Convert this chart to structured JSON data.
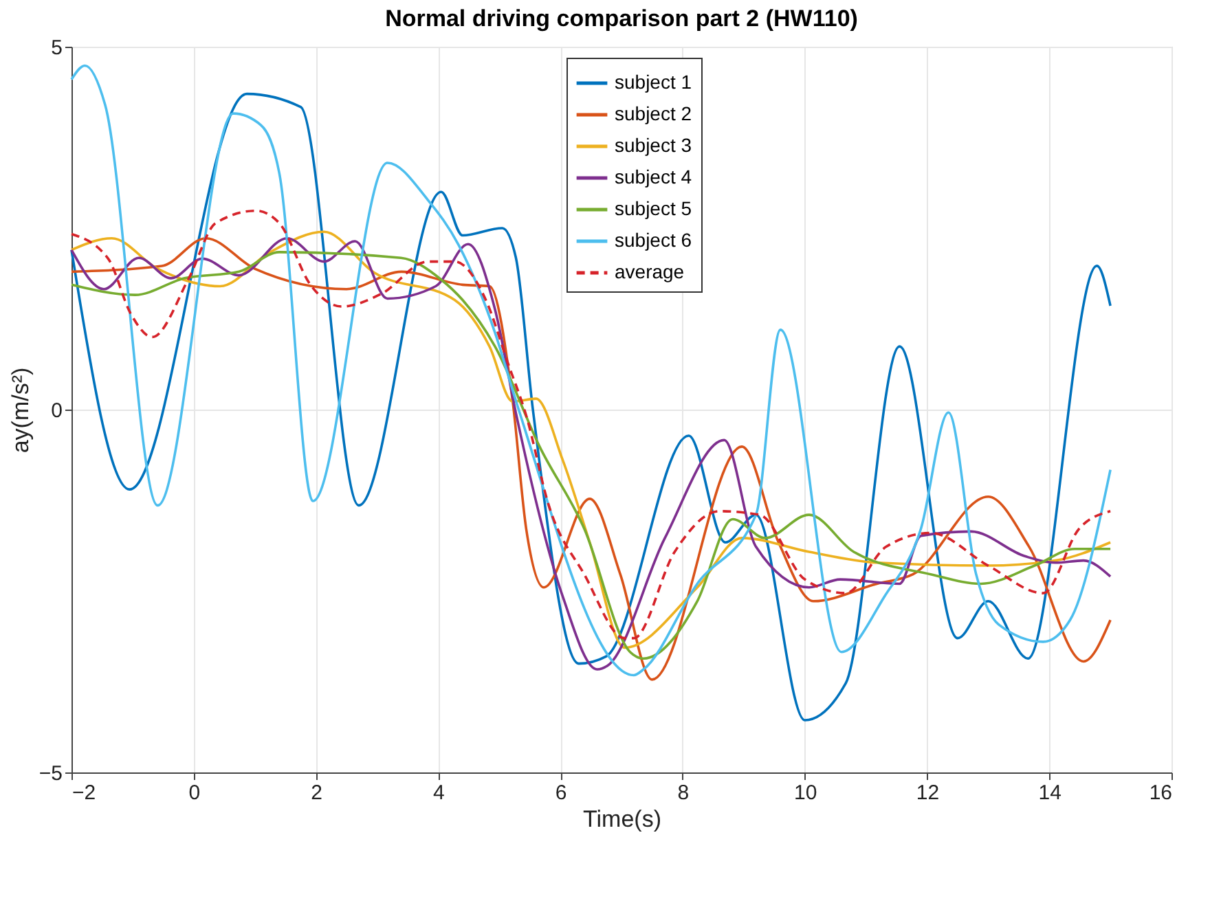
{
  "chart_data": {
    "type": "line",
    "title": "Normal driving comparison part 2 (HW110)",
    "xlabel": "Time(s)",
    "ylabel": "ay(m/s²)",
    "xlim": [
      -2,
      16
    ],
    "ylim": [
      -5,
      5
    ],
    "xticks": [
      -2,
      0,
      2,
      4,
      6,
      8,
      10,
      12,
      14,
      16
    ],
    "yticks": [
      -5,
      0,
      5
    ],
    "grid": true,
    "legend": "top",
    "marker": "none",
    "series": [
      {
        "name": "subject 1",
        "color": "#0072bd",
        "line_style": "solid",
        "x": [
          -2,
          -1.05,
          0.87,
          1.75,
          2.7,
          4.05,
          4.4,
          5.05,
          5.27,
          5.55,
          6.3,
          6.75,
          8.1,
          8.7,
          9.2,
          10.0,
          10.67,
          11.55,
          12.5,
          13.0,
          13.65,
          14.78,
          15.0
        ],
        "values": [
          2.2,
          -1.1,
          4.35,
          4.17,
          -1.32,
          3.0,
          2.4,
          2.5,
          2.1,
          0,
          -3.5,
          -3.4,
          -0.36,
          -1.83,
          -1.45,
          -4.28,
          -3.77,
          0.87,
          -3.15,
          -2.64,
          -3.43,
          1.98,
          1.43
        ]
      },
      {
        "name": "subject 2",
        "color": "#d95319",
        "line_style": "solid",
        "x": [
          -2,
          -0.52,
          0.2,
          1.0,
          2.5,
          3.4,
          4.4,
          4.84,
          5.22,
          5.44,
          5.73,
          6.48,
          6.98,
          7.5,
          8.97,
          9.57,
          10.14,
          11.18,
          11.77,
          13.0,
          13.67,
          14.56,
          15.0
        ],
        "values": [
          1.9,
          1.98,
          2.36,
          1.94,
          1.66,
          1.9,
          1.72,
          1.7,
          0.11,
          -1.64,
          -2.45,
          -1.23,
          -2.27,
          -3.72,
          -0.51,
          -1.83,
          -2.64,
          -2.4,
          -2.27,
          -1.2,
          -1.89,
          -3.47,
          -2.9
        ]
      },
      {
        "name": "subject 3",
        "color": "#edb120",
        "line_style": "solid",
        "x": [
          -2,
          -1.34,
          -0.59,
          0.43,
          1.25,
          2.13,
          2.95,
          4.27,
          4.84,
          5.22,
          5.6,
          6.04,
          6.48,
          7.05,
          8.24,
          8.97,
          10.07,
          11.18,
          13.0,
          14.1,
          15.0
        ],
        "values": [
          2.2,
          2.36,
          1.94,
          1.7,
          2.17,
          2.45,
          1.89,
          1.51,
          0.87,
          0.11,
          0.15,
          -0.7,
          -1.83,
          -3.28,
          -2.45,
          -1.77,
          -1.96,
          -2.11,
          -2.15,
          -2.08,
          -1.83
        ]
      },
      {
        "name": "subject 4",
        "color": "#7e2f8e",
        "line_style": "solid",
        "x": [
          -2,
          -1.47,
          -0.9,
          -0.37,
          0.14,
          0.74,
          1.53,
          2.13,
          2.64,
          3.17,
          3.96,
          4.49,
          4.93,
          5.28,
          6.04,
          6.6,
          6.77,
          7.71,
          8.68,
          9.2,
          10.07,
          10.58,
          11.55,
          11.9,
          12.72,
          13.6,
          14.1,
          14.56,
          15.0
        ],
        "values": [
          2.2,
          1.66,
          2.09,
          1.81,
          2.08,
          1.85,
          2.36,
          2.04,
          2.32,
          1.53,
          1.7,
          2.28,
          1.38,
          -0.08,
          -2.58,
          -3.58,
          -3.53,
          -1.77,
          -0.42,
          -1.89,
          -2.45,
          -2.34,
          -2.4,
          -1.74,
          -1.68,
          -2.02,
          -2.11,
          -2.08,
          -2.3
        ]
      },
      {
        "name": "subject 5",
        "color": "#77ac30",
        "line_style": "solid",
        "x": [
          -2,
          -0.96,
          -0.15,
          0.74,
          1.4,
          3.39,
          4.05,
          4.4,
          4.93,
          5.66,
          6.39,
          7.14,
          7.36,
          8.24,
          8.82,
          9.35,
          10.07,
          10.8,
          12.06,
          12.88,
          13.76,
          14.42,
          15.0
        ],
        "values": [
          1.72,
          1.58,
          1.81,
          1.9,
          2.17,
          2.09,
          1.79,
          1.51,
          0.87,
          -0.51,
          -1.64,
          -3.34,
          -3.43,
          -2.64,
          -1.51,
          -1.77,
          -1.45,
          -1.96,
          -2.27,
          -2.4,
          -2.15,
          -1.92,
          -1.92
        ]
      },
      {
        "name": "subject 6",
        "color": "#4dbeee",
        "line_style": "solid",
        "x": [
          -2,
          -1.78,
          -1.45,
          -0.59,
          0.65,
          1.1,
          1.4,
          1.95,
          3.17,
          3.83,
          4.34,
          4.93,
          5.28,
          7.2,
          7.36,
          8.24,
          9.2,
          9.6,
          10.6,
          11.3,
          11.9,
          12.35,
          12.8,
          13.17,
          13.9,
          14.34,
          15.0
        ],
        "values": [
          4.55,
          4.74,
          4.2,
          -1.32,
          4.08,
          3.92,
          3.26,
          -1.26,
          3.4,
          2.89,
          2.26,
          1.06,
          0.1,
          -3.66,
          -3.58,
          -2.4,
          -1.45,
          1.1,
          -3.34,
          -2.58,
          -1.64,
          -0.04,
          -2.26,
          -2.96,
          -3.2,
          -2.9,
          -0.83
        ]
      },
      {
        "name": "average",
        "color": "#d6232a",
        "line_style": "dashed",
        "x": [
          -2,
          -1.4,
          -1.03,
          -0.68,
          -0.08,
          0.36,
          1.02,
          1.4,
          1.91,
          2.42,
          3.08,
          3.83,
          4.27,
          4.78,
          5.15,
          5.44,
          5.81,
          6.39,
          7.05,
          7.2,
          7.87,
          8.6,
          9.26,
          10.0,
          10.67,
          11.33,
          12.06,
          13.0,
          13.9,
          14.49,
          15.0
        ],
        "values": [
          2.42,
          2.08,
          1.32,
          1.0,
          1.81,
          2.57,
          2.74,
          2.57,
          1.72,
          1.42,
          1.6,
          2.04,
          2.04,
          1.51,
          0.62,
          -0.08,
          -1.32,
          -2.27,
          -3.15,
          -3.15,
          -1.96,
          -1.4,
          -1.45,
          -2.34,
          -2.53,
          -1.89,
          -1.7,
          -2.15,
          -2.53,
          -1.64,
          -1.4
        ]
      }
    ]
  }
}
